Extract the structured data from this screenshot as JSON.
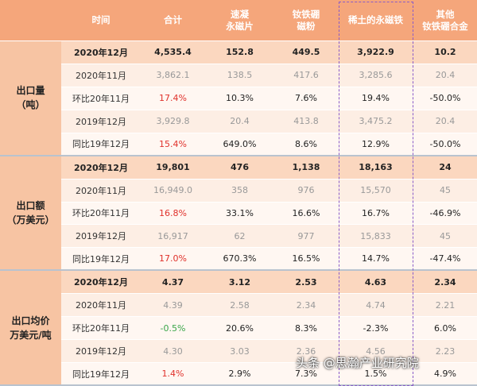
{
  "header": [
    "时间",
    "合计",
    [
      "速凝",
      "永磁片"
    ],
    [
      "钕铁硼",
      "磁粉"
    ],
    "稀土的永磁铁",
    [
      "其他",
      "钕铁硼合金"
    ]
  ],
  "groups": [
    {
      "label": "出口量",
      "unit": "（吨）",
      "rows": [
        [
          "2020年12月",
          "4,535.4",
          "152.8",
          "449.5",
          "3,922.9",
          "10.2"
        ],
        [
          "2020年11月",
          "3,862.1",
          "138.5",
          "417.6",
          "3,285.6",
          "20.4"
        ],
        [
          "环比20年11月",
          "17.4%",
          "10.3%",
          "7.6%",
          "19.4%",
          "-50.0%"
        ],
        [
          "2019年12月",
          "3,929.8",
          "20.4",
          "413.8",
          "3,475.2",
          "20.4"
        ],
        [
          "同比19年12月",
          "15.4%",
          "649.0%",
          "8.6%",
          "12.9%",
          "-50.0%"
        ]
      ]
    },
    {
      "label": "出口额",
      "unit": "（万美元）",
      "rows": [
        [
          "2020年12月",
          "19,801",
          "476",
          "1,138",
          "18,163",
          "24"
        ],
        [
          "2020年11月",
          "16,949.0",
          "358",
          "976",
          "15,570",
          "45"
        ],
        [
          "环比20年11月",
          "16.8%",
          "33.1%",
          "16.6%",
          "16.7%",
          "-46.9%"
        ],
        [
          "2019年12月",
          "16,917",
          "62",
          "977",
          "15,833",
          "45"
        ],
        [
          "同比19年12月",
          "17.0%",
          "670.3%",
          "16.5%",
          "14.7%",
          "-47.4%"
        ]
      ]
    },
    {
      "label": "出口均价",
      "unit": "万美元/吨",
      "rows": [
        [
          "2020年12月",
          "4.37",
          "3.12",
          "2.53",
          "4.63",
          "2.34"
        ],
        [
          "2020年11月",
          "4.39",
          "2.58",
          "2.34",
          "4.74",
          "2.21"
        ],
        [
          "环比20年11月",
          "-0.5%",
          "20.6%",
          "8.3%",
          "-2.3%",
          "6.0%"
        ],
        [
          "2019年12月",
          "4.30",
          "3.03",
          "2.36",
          "4.56",
          "2.23"
        ],
        [
          "同比19年12月",
          "1.4%",
          "2.9%",
          "7.3%",
          "1.5%",
          "4.9%"
        ]
      ]
    }
  ],
  "watermark": "头条 @思瀚产业研究院"
}
